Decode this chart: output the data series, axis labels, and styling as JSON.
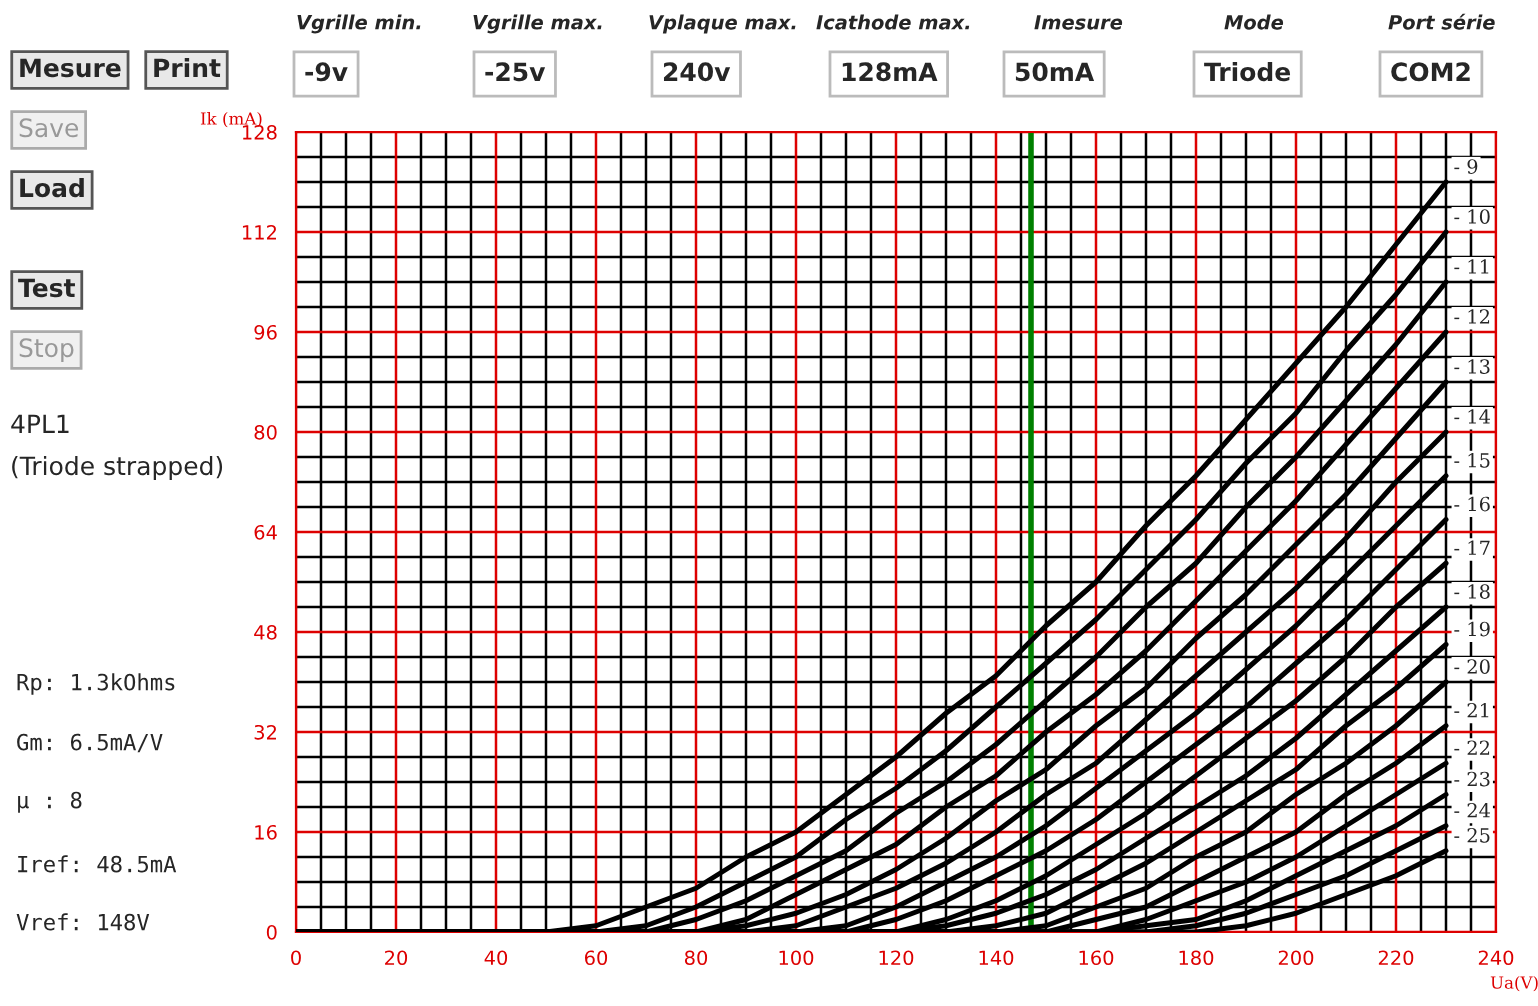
{
  "chart_data": {
    "type": "line",
    "xlabel": "Ua(V)",
    "ylabel": "Ik (mA)",
    "x": [
      0,
      50,
      60,
      70,
      80,
      90,
      100,
      110,
      120,
      130,
      140,
      150,
      160,
      170,
      180,
      190,
      200,
      210,
      220,
      230
    ],
    "series": [
      {
        "name": "- 9",
        "color": "#000000",
        "values": [
          0,
          0,
          1,
          4,
          7,
          12,
          16,
          22,
          28,
          35,
          41,
          49,
          56,
          65,
          73,
          82,
          91,
          100,
          110,
          120
        ]
      },
      {
        "name": "- 10",
        "color": "#000000",
        "values": [
          0,
          0,
          0,
          1,
          4,
          8,
          12,
          18,
          23,
          29,
          36,
          43,
          50,
          58,
          66,
          75,
          83,
          93,
          102,
          112
        ]
      },
      {
        "name": "- 11",
        "color": "#000000",
        "values": [
          0,
          0,
          0,
          0,
          2,
          5,
          9,
          13,
          19,
          24,
          30,
          37,
          44,
          52,
          59,
          68,
          76,
          85,
          94,
          104
        ]
      },
      {
        "name": "- 12",
        "color": "#000000",
        "values": [
          0,
          0,
          0,
          0,
          0,
          2,
          6,
          10,
          14,
          20,
          25,
          32,
          38,
          45,
          53,
          61,
          69,
          78,
          87,
          96
        ]
      },
      {
        "name": "- 13",
        "color": "#000000",
        "values": [
          0,
          0,
          0,
          0,
          0,
          1,
          3,
          6,
          10,
          15,
          21,
          26,
          33,
          39,
          47,
          54,
          62,
          70,
          79,
          88
        ]
      },
      {
        "name": "- 14",
        "color": "#000000",
        "values": [
          0,
          0,
          0,
          0,
          0,
          0,
          1,
          4,
          7,
          11,
          16,
          22,
          27,
          34,
          41,
          48,
          55,
          63,
          72,
          80
        ]
      },
      {
        "name": "- 15",
        "color": "#000000",
        "values": [
          0,
          0,
          0,
          0,
          0,
          0,
          0,
          1,
          4,
          8,
          12,
          17,
          23,
          29,
          35,
          42,
          49,
          57,
          65,
          73
        ]
      },
      {
        "name": "- 16",
        "color": "#000000",
        "values": [
          0,
          0,
          0,
          0,
          0,
          0,
          0,
          0,
          2,
          5,
          9,
          13,
          18,
          24,
          30,
          36,
          43,
          50,
          58,
          66
        ]
      },
      {
        "name": "- 17",
        "color": "#000000",
        "values": [
          0,
          0,
          0,
          0,
          0,
          0,
          0,
          0,
          0,
          2,
          5,
          9,
          14,
          19,
          25,
          31,
          37,
          44,
          52,
          59
        ]
      },
      {
        "name": "- 18",
        "color": "#000000",
        "values": [
          0,
          0,
          0,
          0,
          0,
          0,
          0,
          0,
          0,
          1,
          3,
          6,
          10,
          15,
          20,
          25,
          31,
          38,
          45,
          52
        ]
      },
      {
        "name": "- 19",
        "color": "#000000",
        "values": [
          0,
          0,
          0,
          0,
          0,
          0,
          0,
          0,
          0,
          0,
          1,
          3,
          7,
          11,
          16,
          21,
          26,
          33,
          39,
          46
        ]
      },
      {
        "name": "- 20",
        "color": "#000000",
        "values": [
          0,
          0,
          0,
          0,
          0,
          0,
          0,
          0,
          0,
          0,
          0,
          1,
          4,
          7,
          12,
          16,
          22,
          27,
          33,
          40
        ]
      },
      {
        "name": "- 21",
        "color": "#000000",
        "values": [
          0,
          0,
          0,
          0,
          0,
          0,
          0,
          0,
          0,
          0,
          0,
          0,
          2,
          4,
          8,
          12,
          16,
          22,
          27,
          33
        ]
      },
      {
        "name": "- 22",
        "color": "#000000",
        "values": [
          0,
          0,
          0,
          0,
          0,
          0,
          0,
          0,
          0,
          0,
          0,
          0,
          0,
          2,
          5,
          8,
          12,
          17,
          22,
          27
        ]
      },
      {
        "name": "- 23",
        "color": "#000000",
        "values": [
          0,
          0,
          0,
          0,
          0,
          0,
          0,
          0,
          0,
          0,
          0,
          0,
          0,
          1,
          2,
          5,
          9,
          13,
          17,
          22
        ]
      },
      {
        "name": "- 24",
        "color": "#000000",
        "values": [
          0,
          0,
          0,
          0,
          0,
          0,
          0,
          0,
          0,
          0,
          0,
          0,
          0,
          0,
          1,
          3,
          6,
          9,
          13,
          17
        ]
      },
      {
        "name": "- 25",
        "color": "#000000",
        "values": [
          0,
          0,
          0,
          0,
          0,
          0,
          0,
          0,
          0,
          0,
          0,
          0,
          0,
          0,
          0,
          1,
          3,
          6,
          9,
          13
        ]
      }
    ],
    "xlim": [
      0,
      240
    ],
    "xticks": [
      0,
      20,
      40,
      60,
      80,
      100,
      120,
      140,
      160,
      180,
      200,
      220,
      240
    ],
    "ylim": [
      0,
      128
    ],
    "yticks": [
      0,
      16,
      32,
      48,
      64,
      80,
      96,
      112,
      128
    ],
    "grid": true,
    "legend": false,
    "marker": "none",
    "line_style": "solid",
    "ref_lines": [
      {
        "axis": "x",
        "value": 147,
        "label": null,
        "color": "#008000"
      }
    ],
    "annotations": [
      "Vgrille min.",
      "Vgrille max.",
      "Vplaque max.",
      "Icathode max.",
      "Imesure",
      "Mode",
      "Port série",
      "Mesure",
      "Print",
      "-9v",
      "-25v",
      "240v",
      "128mA",
      "50mA",
      "Triode",
      "COM2",
      "Save",
      "Load",
      "Test",
      "Stop",
      "4PL1",
      "(Triode strapped)",
      "Rp: 1.3kOhms",
      "Gm: 6.5mA/V",
      "µ : 8",
      "Iref: 48.5mA",
      "Vref: 148V"
    ]
  }
}
